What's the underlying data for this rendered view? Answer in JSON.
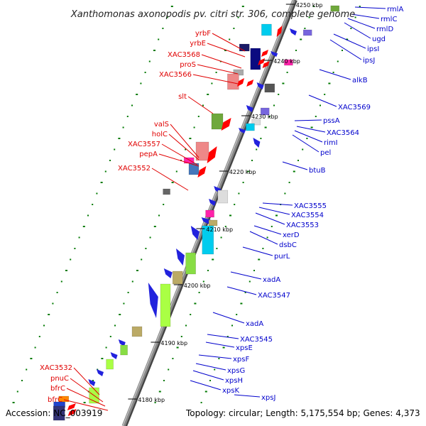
{
  "title": "Xanthomonas axonopodis pv. citri str. 306, complete genome",
  "accession": "Accession: NC_003919",
  "topology": "Topology: circular; Length: 5,175,554 bp; Genes: 4,373",
  "colors": {
    "left_label": "#e00000",
    "right_label": "#0000cc",
    "backbone": "#888888",
    "tick": "#007a00"
  },
  "kbp_labels": [
    "4250 kbp",
    "4240 kbp",
    "4230 kbp",
    "4220 kbp",
    "4210 kbp",
    "4200 kbp",
    "4190 kbp",
    "4180 kbp"
  ],
  "left_labels": [
    "yrbF",
    "yrbE",
    "XAC3568",
    "proS",
    "XAC3566",
    "slt",
    "valS",
    "holC",
    "XAC3557",
    "pepA",
    "XAC3552",
    "XAC3532",
    "pnuC",
    "bfrC",
    "bfrC"
  ],
  "right_labels": [
    "rmlA",
    "rmlC",
    "rmlD",
    "ugd",
    "ipsI",
    "ipsJ",
    "alkB",
    "XAC3569",
    "pssA",
    "XAC3564",
    "rimI",
    "pel",
    "btuB",
    "XAC3555",
    "XAC3554",
    "XAC3553",
    "xerD",
    "dsbC",
    "purL",
    "xadA",
    "XAC3547",
    "xadA",
    "XAC3545",
    "xpsE",
    "xpsF",
    "xpsG",
    "xpsH",
    "xpsK",
    "xpsJ"
  ]
}
